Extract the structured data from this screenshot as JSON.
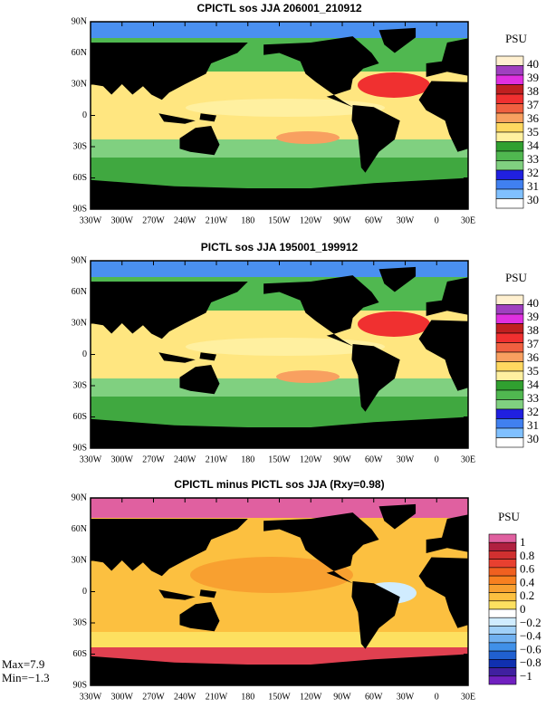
{
  "panels": [
    {
      "title": "CPICTL sos JJA 206001_210912",
      "unit": "PSU",
      "colorbar": [
        "40",
        "39",
        "38",
        "37",
        "36",
        "35",
        "34",
        "33",
        "32",
        "31",
        "30"
      ]
    },
    {
      "title": "PICTL sos JJA 195001_199912",
      "unit": "PSU",
      "colorbar": [
        "40",
        "39",
        "38",
        "37",
        "36",
        "35",
        "34",
        "33",
        "32",
        "31",
        "30"
      ]
    },
    {
      "title": "CPICTL minus PICTL sos JJA (Rxy=0.98)",
      "unit": "PSU",
      "colorbar": [
        "1",
        "0.8",
        "0.6",
        "0.4",
        "0.2",
        "0",
        "−0.2",
        "−0.4",
        "−0.6",
        "−0.8",
        "−1"
      ]
    }
  ],
  "lat_labels": [
    "90N",
    "60N",
    "30N",
    "0",
    "30S",
    "60S",
    "90S"
  ],
  "lon_labels": [
    "330W",
    "300W",
    "270W",
    "240W",
    "210W",
    "180",
    "150W",
    "120W",
    "90W",
    "60W",
    "30W",
    "0",
    "30E"
  ],
  "stats": {
    "max": "Max=7.9",
    "min": "Min=−1.3"
  }
}
